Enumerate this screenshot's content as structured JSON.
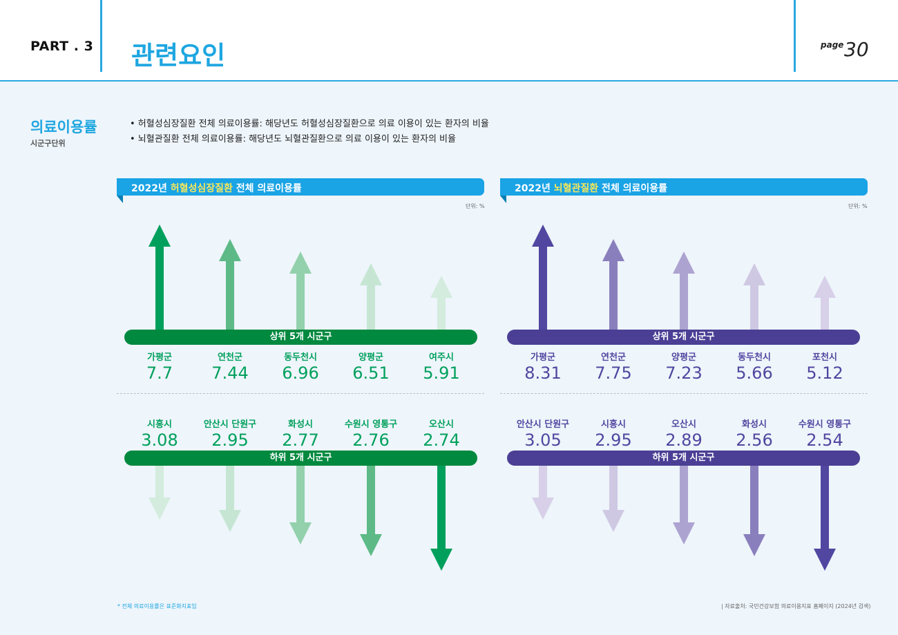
{
  "header": {
    "part": "PART . 3",
    "title": "관련요인",
    "page_label": "page",
    "page_number": "30"
  },
  "section": {
    "title": "의료이용률",
    "subtitle": "시군구단위",
    "bullets": [
      "• 허혈성심장질환 전체 의료이용률: 해당년도 허혈성심장질환으로 의료 이용이 있는 환자의 비율",
      "• 뇌혈관질환 전체 의료이용률: 해당년도 뇌혈관질환으로 의료 이용이 있는 환자의 비율"
    ]
  },
  "colors": {
    "accent": "#1ea6e0",
    "green_dark": "#00893f",
    "purple_dark": "#4a3f94",
    "green_shades": [
      "#00a05c",
      "#5dba87",
      "#93d1ac",
      "#c6e6d3",
      "#d3ecdd"
    ],
    "purple_shades": [
      "#5146a0",
      "#8a7fbd",
      "#ada3d1",
      "#cfc8e3",
      "#d7d0e8"
    ]
  },
  "panels": [
    {
      "title_prefix": "2022년 ",
      "title_highlight": "허혈성심장질환",
      "title_suffix": " 전체 의료이용률",
      "unit": "단위: %",
      "top_label": "상위 5개 시군구",
      "bottom_label": "하위 5개 시군구",
      "top": [
        {
          "name": "가평군",
          "value": "7.7"
        },
        {
          "name": "연천군",
          "value": "7.44"
        },
        {
          "name": "동두천시",
          "value": "6.96"
        },
        {
          "name": "양평군",
          "value": "6.51"
        },
        {
          "name": "여주시",
          "value": "5.91"
        }
      ],
      "bottom": [
        {
          "name": "시흥시",
          "value": "3.08"
        },
        {
          "name": "안산시 단원구",
          "value": "2.95"
        },
        {
          "name": "화성시",
          "value": "2.77"
        },
        {
          "name": "수원시 영통구",
          "value": "2.76"
        },
        {
          "name": "오산시",
          "value": "2.74"
        }
      ]
    },
    {
      "title_prefix": "2022년 ",
      "title_highlight": "뇌혈관질환",
      "title_suffix": " 전체 의료이용률",
      "unit": "단위: %",
      "top_label": "상위 5개 시군구",
      "bottom_label": "하위 5개 시군구",
      "top": [
        {
          "name": "가평군",
          "value": "8.31"
        },
        {
          "name": "연천군",
          "value": "7.75"
        },
        {
          "name": "양평군",
          "value": "7.23"
        },
        {
          "name": "동두천시",
          "value": "5.66"
        },
        {
          "name": "포천시",
          "value": "5.12"
        }
      ],
      "bottom": [
        {
          "name": "안산시 단원구",
          "value": "3.05"
        },
        {
          "name": "시흥시",
          "value": "2.95"
        },
        {
          "name": "오산시",
          "value": "2.89"
        },
        {
          "name": "화성시",
          "value": "2.56"
        },
        {
          "name": "수원시 영통구",
          "value": "2.54"
        }
      ]
    }
  ],
  "footer": {
    "note": "* 전체 의료이용률은 표준화지표임",
    "source": "| 자료출처: 국민건강보험 의료이용지표 홈페이지 (2024년 검색)"
  }
}
